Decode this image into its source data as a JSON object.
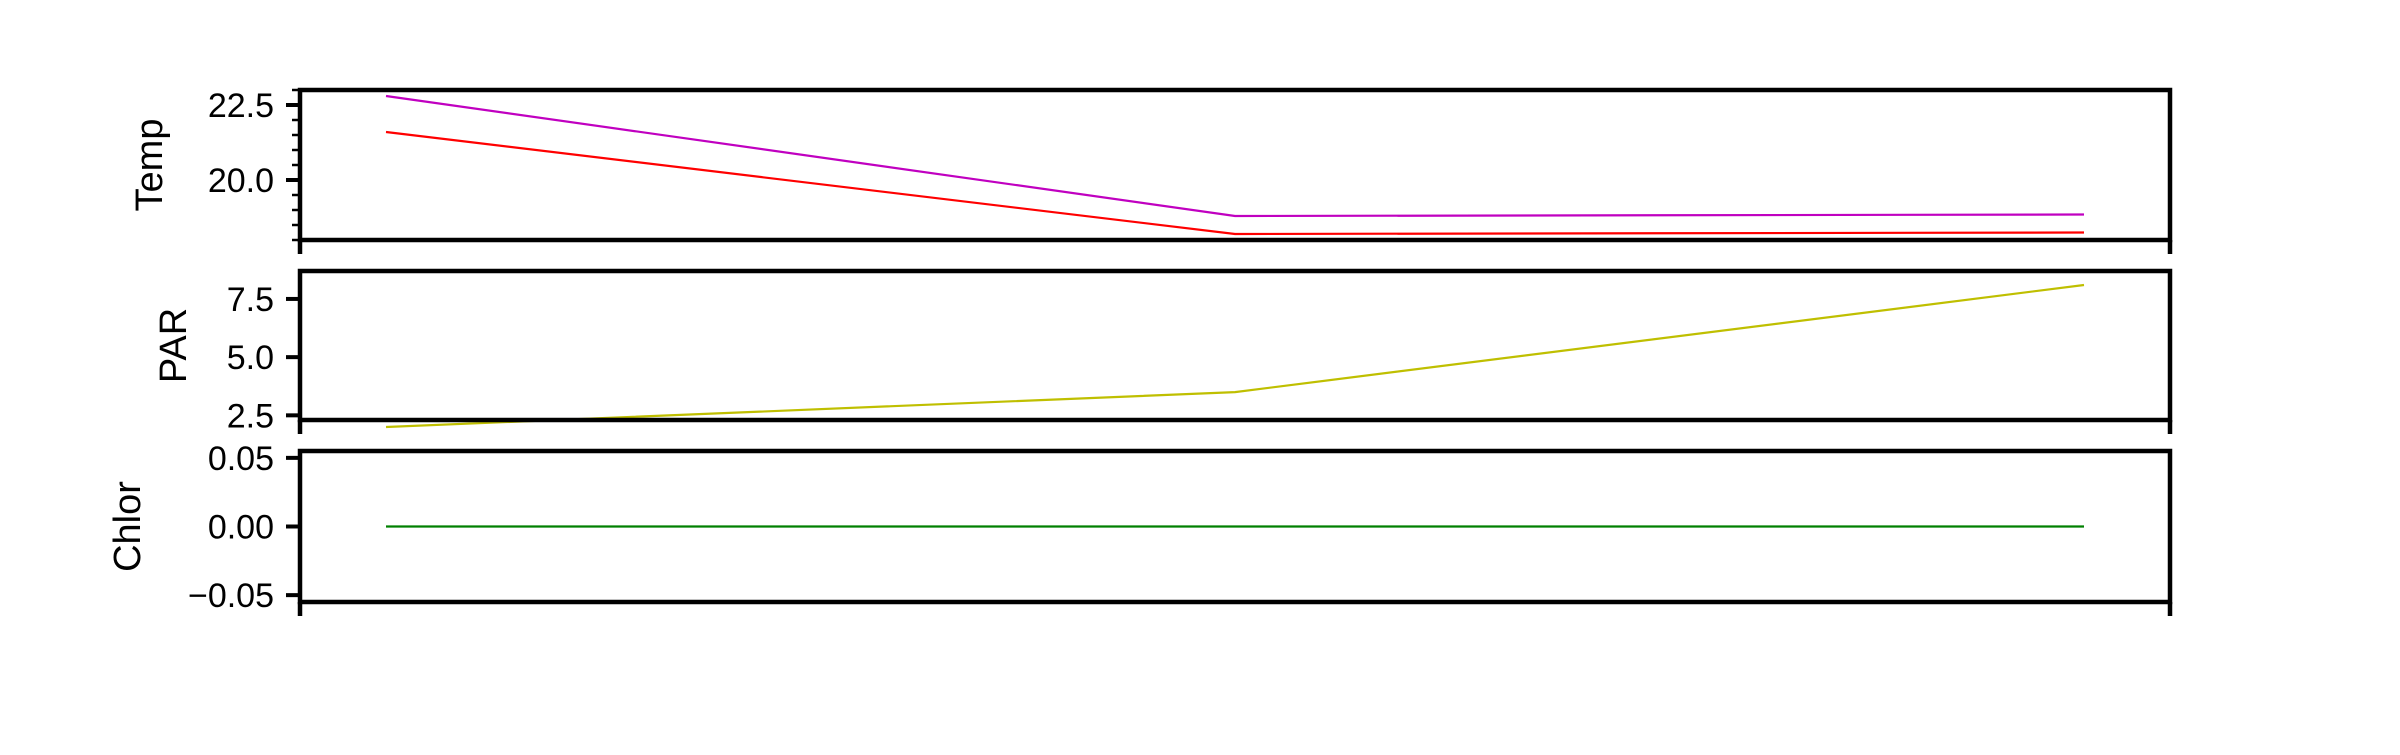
{
  "chart_data": [
    {
      "type": "line",
      "title": "",
      "xlabel": "",
      "ylabel": "Temp",
      "x": [
        0,
        1,
        2
      ],
      "ylim": [
        18.0,
        23.0
      ],
      "major_ticks": [
        20.0,
        22.5
      ],
      "tick_labels": [
        "20.0",
        "22.5"
      ],
      "grid": false,
      "series": [
        {
          "values": [
            22.8,
            18.8,
            18.85
          ],
          "color": "#c000c0"
        },
        {
          "values": [
            21.6,
            18.2,
            18.25
          ],
          "color": "#ff0000"
        }
      ]
    },
    {
      "type": "line",
      "title": "",
      "xlabel": "",
      "ylabel": "PAR",
      "x": [
        0,
        1,
        2
      ],
      "ylim": [
        2.3,
        8.7
      ],
      "major_ticks": [
        2.5,
        5.0,
        7.5
      ],
      "tick_labels": [
        "2.5",
        "5.0",
        "7.5"
      ],
      "grid": false,
      "series": [
        {
          "values": [
            2.0,
            3.5,
            8.1
          ],
          "color": "#bfbf00"
        }
      ]
    },
    {
      "type": "line",
      "title": "",
      "xlabel": "",
      "ylabel": "Chlor",
      "x": [
        0,
        1,
        2
      ],
      "ylim": [
        -0.055,
        0.055
      ],
      "major_ticks": [
        -0.05,
        0.0,
        0.05
      ],
      "tick_labels": [
        "−0.05",
        "0.00",
        "0.05"
      ],
      "grid": false,
      "series": [
        {
          "values": [
            0.0,
            0.0,
            0.0
          ],
          "color": "#008000"
        }
      ]
    }
  ]
}
